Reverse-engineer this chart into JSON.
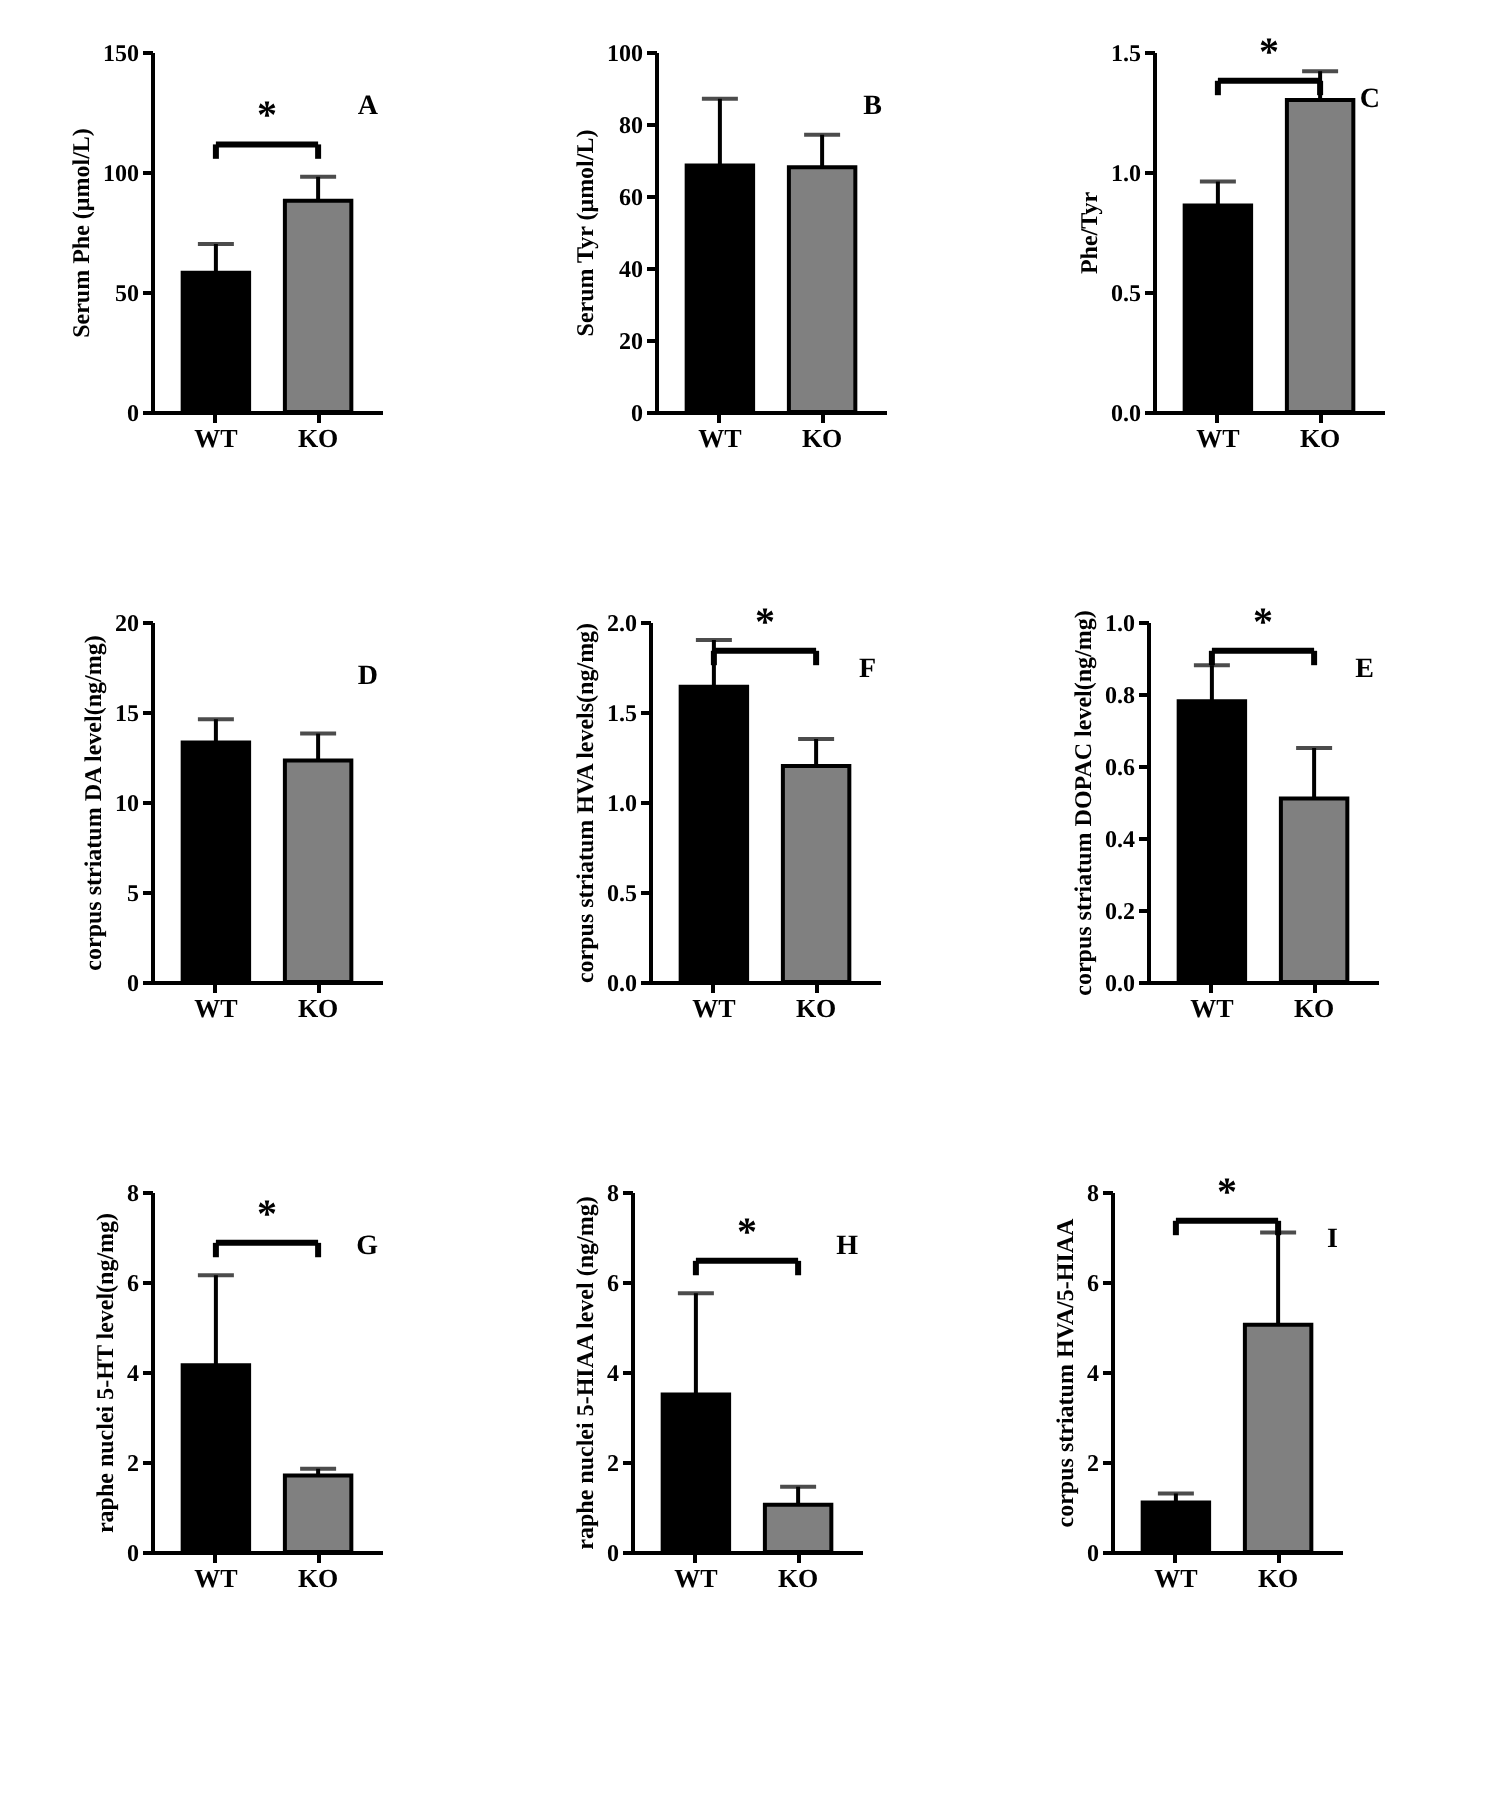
{
  "chart_data": [
    {
      "type": "bar",
      "title": "A",
      "ylabel": "Serum Phe (μmol/L)",
      "categories": [
        "WT",
        "KO"
      ],
      "values": [
        58,
        88
      ],
      "colors": [
        "#000000",
        "#808080"
      ],
      "errors": [
        [
          58,
          70
        ],
        [
          88,
          98
        ]
      ],
      "ylim": [
        0,
        150
      ],
      "yticks": [
        0,
        50,
        100,
        150
      ],
      "annotations": [
        "*"
      ]
    },
    {
      "type": "bar",
      "title": "B",
      "ylabel": "Serum Tyr (μmol/L)",
      "categories": [
        "WT",
        "KO"
      ],
      "values": [
        68.5,
        68
      ],
      "colors": [
        "#000000",
        "#808080"
      ],
      "errors": [
        [
          68.5,
          87
        ],
        [
          68,
          77
        ]
      ],
      "ylim": [
        0,
        100
      ],
      "yticks": [
        0,
        20,
        40,
        60,
        80,
        100
      ]
    },
    {
      "type": "bar",
      "title": "C",
      "ylabel": "Phe/Tyr",
      "categories": [
        "WT",
        "KO"
      ],
      "values": [
        0.86,
        1.3
      ],
      "colors": [
        "#000000",
        "#808080"
      ],
      "errors": [
        [
          0.86,
          0.96
        ],
        [
          1.3,
          1.42
        ]
      ],
      "ylim": [
        0,
        1.5
      ],
      "yticks": [
        {
          "value": 0,
          "label": "0.0"
        },
        {
          "value": 0.5,
          "label": "0.5"
        },
        {
          "value": 1,
          "label": "1.0"
        },
        {
          "value": 1.5,
          "label": "1.5"
        }
      ],
      "annotations": [
        "*"
      ]
    },
    {
      "type": "bar",
      "title": "D",
      "ylabel": "corpus striatum DA level(ng/mg)",
      "categories": [
        "WT",
        "KO"
      ],
      "values": [
        13.3,
        12.3
      ],
      "colors": [
        "#000000",
        "#808080"
      ],
      "errors": [
        [
          13.3,
          14.6
        ],
        [
          12.3,
          13.8
        ]
      ],
      "ylim": [
        0,
        20
      ],
      "yticks": [
        0,
        5,
        10,
        15,
        20
      ]
    },
    {
      "type": "bar",
      "title": "F",
      "ylabel": "corpus striatum HVA levels(ng/mg)",
      "categories": [
        "WT",
        "KO"
      ],
      "values": [
        1.64,
        1.2
      ],
      "colors": [
        "#000000",
        "#808080"
      ],
      "errors": [
        [
          1.64,
          1.9
        ],
        [
          1.2,
          1.35
        ]
      ],
      "ylim": [
        0,
        2
      ],
      "yticks": [
        {
          "value": 0,
          "label": "0.0"
        },
        {
          "value": 0.5,
          "label": "0.5"
        },
        {
          "value": 1,
          "label": "1.0"
        },
        {
          "value": 1.5,
          "label": "1.5"
        },
        {
          "value": 2,
          "label": "2.0"
        }
      ],
      "annotations": [
        "*"
      ]
    },
    {
      "type": "bar",
      "title": "E",
      "ylabel": "corpus striatum DOPAC level(ng/mg)",
      "categories": [
        "WT",
        "KO"
      ],
      "values": [
        0.78,
        0.51
      ],
      "colors": [
        "#000000",
        "#808080"
      ],
      "errors": [
        [
          0.78,
          0.88
        ],
        [
          0.51,
          0.65
        ]
      ],
      "ylim": [
        0,
        1
      ],
      "yticks": [
        {
          "value": 0,
          "label": "0.0"
        },
        {
          "value": 0.2,
          "label": "0.2"
        },
        {
          "value": 0.4,
          "label": "0.4"
        },
        {
          "value": 0.6,
          "label": "0.6"
        },
        {
          "value": 0.8,
          "label": "0.8"
        },
        {
          "value": 1,
          "label": "1.0"
        }
      ],
      "annotations": [
        "*"
      ]
    },
    {
      "type": "bar",
      "title": "G",
      "ylabel": "raphe nuclei 5-HT level(ng/mg)",
      "categories": [
        "WT",
        "KO"
      ],
      "values": [
        4.15,
        1.7
      ],
      "colors": [
        "#000000",
        "#808080"
      ],
      "errors": [
        [
          4.15,
          6.15
        ],
        [
          1.7,
          1.85
        ]
      ],
      "ylim": [
        0,
        8
      ],
      "yticks": [
        0,
        2,
        4,
        6,
        8
      ],
      "annotations": [
        "*"
      ]
    },
    {
      "type": "bar",
      "title": "H",
      "ylabel": "raphe nuclei 5-HIAA level (ng/mg)",
      "categories": [
        "WT",
        "KO"
      ],
      "values": [
        3.5,
        1.05
      ],
      "colors": [
        "#000000",
        "#808080"
      ],
      "errors": [
        [
          3.5,
          5.75
        ],
        [
          1.05,
          1.45
        ]
      ],
      "ylim": [
        0,
        8
      ],
      "yticks": [
        0,
        2,
        4,
        6,
        8
      ],
      "annotations": [
        "*"
      ]
    },
    {
      "type": "bar",
      "title": "I",
      "ylabel": "corpus striatum  HVA/5-HIAA",
      "categories": [
        "WT",
        "KO"
      ],
      "values": [
        1.1,
        5.05
      ],
      "colors": [
        "#000000",
        "#808080"
      ],
      "errors": [
        [
          1.1,
          1.3
        ],
        [
          5.05,
          7.1
        ]
      ],
      "ylim": [
        0,
        8
      ],
      "yticks": [
        0,
        2,
        4,
        6,
        8
      ],
      "annotations": [
        "*"
      ]
    }
  ]
}
